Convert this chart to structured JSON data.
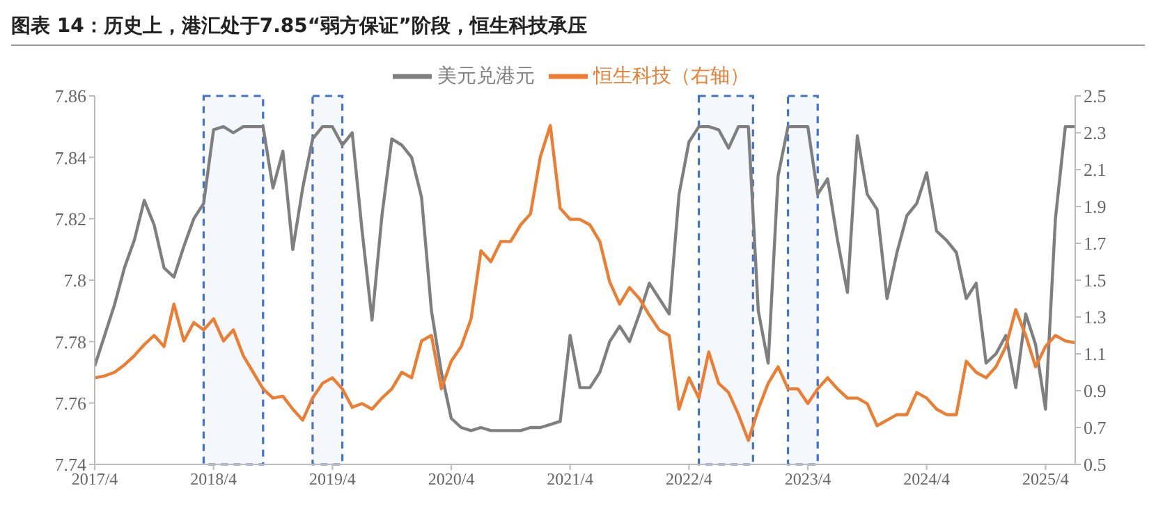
{
  "chart_data": {
    "type": "line",
    "title": "图表 14：历史上，港汇处于7.85“弱方保证”阶段，恒生科技承压",
    "x": [
      "2017-04",
      "2017-05",
      "2017-06",
      "2017-07",
      "2017-08",
      "2017-09",
      "2017-10",
      "2017-11",
      "2017-12",
      "2018-01",
      "2018-02",
      "2018-03",
      "2018-04",
      "2018-05",
      "2018-06",
      "2018-07",
      "2018-08",
      "2018-09",
      "2018-10",
      "2018-11",
      "2018-12",
      "2019-01",
      "2019-02",
      "2019-03",
      "2019-04",
      "2019-05",
      "2019-06",
      "2019-07",
      "2019-08",
      "2019-09",
      "2019-10",
      "2019-11",
      "2019-12",
      "2020-01",
      "2020-02",
      "2020-03",
      "2020-04",
      "2020-05",
      "2020-06",
      "2020-07",
      "2020-08",
      "2020-09",
      "2020-10",
      "2020-11",
      "2020-12",
      "2021-01",
      "2021-02",
      "2021-03",
      "2021-04",
      "2021-05",
      "2021-06",
      "2021-07",
      "2021-08",
      "2021-09",
      "2021-10",
      "2021-11",
      "2021-12",
      "2022-01",
      "2022-02",
      "2022-03",
      "2022-04",
      "2022-05",
      "2022-06",
      "2022-07",
      "2022-08",
      "2022-09",
      "2022-10",
      "2022-11",
      "2022-12",
      "2023-01",
      "2023-02",
      "2023-03",
      "2023-04",
      "2023-05",
      "2023-06",
      "2023-07",
      "2023-08",
      "2023-09",
      "2023-10",
      "2023-11",
      "2023-12",
      "2024-01",
      "2024-02",
      "2024-03",
      "2024-04",
      "2024-05",
      "2024-06",
      "2024-07",
      "2024-08",
      "2024-09",
      "2024-10",
      "2024-11",
      "2024-12",
      "2025-01",
      "2025-02",
      "2025-03",
      "2025-04",
      "2025-05",
      "2025-06",
      "2025-07"
    ],
    "series": [
      {
        "name": "美元兑港元",
        "color": "#7f7f7f",
        "values": [
          7.772,
          7.782,
          7.792,
          7.804,
          7.813,
          7.826,
          7.818,
          7.804,
          7.801,
          7.811,
          7.82,
          7.825,
          7.849,
          7.85,
          7.848,
          7.85,
          7.85,
          7.85,
          7.83,
          7.842,
          7.81,
          7.83,
          7.846,
          7.85,
          7.85,
          7.844,
          7.848,
          7.816,
          7.787,
          7.821,
          7.846,
          7.844,
          7.84,
          7.827,
          7.79,
          7.77,
          7.755,
          7.752,
          7.751,
          7.752,
          7.751,
          7.751,
          7.751,
          7.751,
          7.752,
          7.752,
          7.753,
          7.754,
          7.782,
          7.765,
          7.765,
          7.77,
          7.78,
          7.785,
          7.78,
          7.789,
          7.799,
          7.794,
          7.789,
          7.828,
          7.845,
          7.85,
          7.85,
          7.849,
          7.843,
          7.85,
          7.85,
          7.79,
          7.773,
          7.834,
          7.85,
          7.85,
          7.85,
          7.828,
          7.833,
          7.813,
          7.796,
          7.847,
          7.828,
          7.823,
          7.794,
          7.809,
          7.821,
          7.825,
          7.835,
          7.816,
          7.813,
          7.809,
          7.794,
          7.799,
          7.773,
          7.776,
          7.782,
          7.765,
          7.789,
          7.779,
          7.758,
          7.82,
          7.85,
          7.85
        ]
      },
      {
        "name": "恒生科技（右轴）",
        "color": "#ed7d31",
        "axis": "y2",
        "values": [
          0.97,
          0.98,
          1.0,
          1.04,
          1.09,
          1.15,
          1.2,
          1.14,
          1.37,
          1.17,
          1.27,
          1.23,
          1.29,
          1.17,
          1.23,
          1.09,
          1.0,
          0.91,
          0.86,
          0.87,
          0.8,
          0.74,
          0.86,
          0.94,
          0.97,
          0.91,
          0.81,
          0.83,
          0.8,
          0.86,
          0.91,
          1.0,
          0.97,
          1.17,
          1.2,
          0.91,
          1.06,
          1.14,
          1.29,
          1.66,
          1.6,
          1.71,
          1.71,
          1.8,
          1.86,
          2.17,
          2.34,
          1.89,
          1.83,
          1.83,
          1.8,
          1.71,
          1.49,
          1.37,
          1.46,
          1.4,
          1.31,
          1.23,
          1.2,
          0.8,
          0.97,
          0.86,
          1.11,
          0.94,
          0.89,
          0.77,
          0.63,
          0.8,
          0.94,
          1.03,
          0.91,
          0.91,
          0.83,
          0.91,
          0.97,
          0.91,
          0.86,
          0.86,
          0.83,
          0.71,
          0.74,
          0.77,
          0.77,
          0.89,
          0.86,
          0.8,
          0.77,
          0.77,
          1.06,
          1.0,
          0.97,
          1.03,
          1.14,
          1.34,
          1.2,
          1.03,
          1.14,
          1.2,
          1.17,
          1.16
        ]
      }
    ],
    "xlim": [
      "2017-04",
      "2025-07"
    ],
    "xticks": [
      {
        "value": "2017-04",
        "label": "2017/4"
      },
      {
        "value": "2018-04",
        "label": "2018/4"
      },
      {
        "value": "2019-04",
        "label": "2019/4"
      },
      {
        "value": "2020-04",
        "label": "2020/4"
      },
      {
        "value": "2021-04",
        "label": "2021/4"
      },
      {
        "value": "2022-04",
        "label": "2022/4"
      },
      {
        "value": "2023-04",
        "label": "2023/4"
      },
      {
        "value": "2024-04",
        "label": "2024/4"
      },
      {
        "value": "2025-04",
        "label": "2025/4"
      }
    ],
    "ylim": [
      7.74,
      7.86
    ],
    "yticks": [
      7.74,
      7.76,
      7.78,
      7.8,
      7.82,
      7.84,
      7.86
    ],
    "y2lim": [
      0.5,
      2.5
    ],
    "y2ticks": [
      0.5,
      0.7,
      0.9,
      1.1,
      1.3,
      1.5,
      1.7,
      1.9,
      2.1,
      2.3,
      2.5
    ],
    "bands": [
      {
        "axis": "x",
        "from": "2018-03",
        "to": "2018-09",
        "color": "#4472c4"
      },
      {
        "axis": "x",
        "from": "2019-02",
        "to": "2019-05",
        "color": "#4472c4"
      },
      {
        "axis": "x",
        "from": "2022-05",
        "to": "2022-10-15",
        "color": "#4472c4"
      },
      {
        "axis": "x",
        "from": "2023-02",
        "to": "2023-05",
        "color": "#4472c4"
      }
    ],
    "grid": false,
    "legend": "top",
    "marker": "none",
    "line_style": "solid"
  }
}
